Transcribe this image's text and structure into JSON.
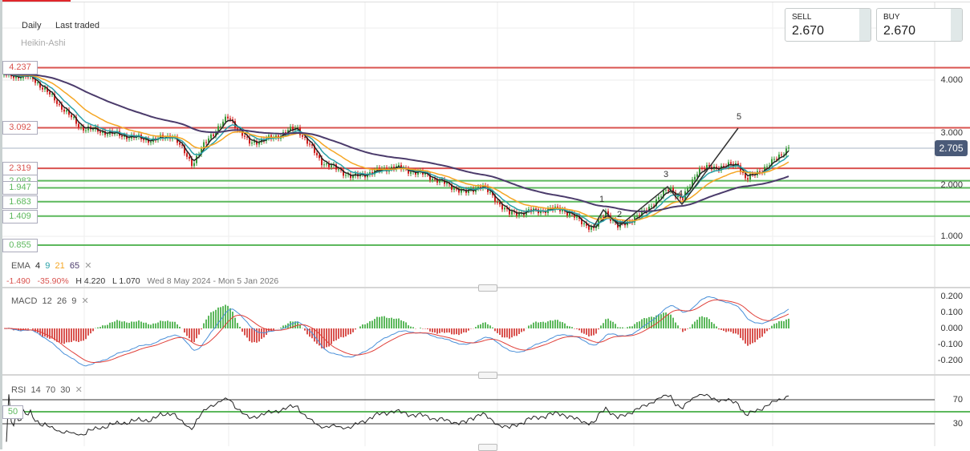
{
  "header": {
    "interval": "Daily",
    "price_type": "Last traded",
    "chart_type": "Heikin-Ashi"
  },
  "quote": {
    "sell_label": "SELL",
    "sell_value": "2.670",
    "buy_label": "BUY",
    "buy_value": "2.670",
    "current_price": "2.705"
  },
  "levels": [
    {
      "label": "4.237",
      "value": 4.237,
      "color": "#d9534f"
    },
    {
      "label": "3.092",
      "value": 3.092,
      "color": "#d9534f"
    },
    {
      "label": "2.319",
      "value": 2.319,
      "color": "#d9534f"
    },
    {
      "label": "2.083",
      "value": 2.083,
      "color": "#5cb85c"
    },
    {
      "label": "1.947",
      "value": 1.947,
      "color": "#5cb85c"
    },
    {
      "label": "1.683",
      "value": 1.683,
      "color": "#5cb85c"
    },
    {
      "label": "1.409",
      "value": 1.409,
      "color": "#5cb85c"
    },
    {
      "label": "0.855",
      "value": 0.855,
      "color": "#5cb85c"
    }
  ],
  "price_axis": [
    "4.000",
    "3.000",
    "2.000",
    "1.000"
  ],
  "ema": {
    "label": "EMA",
    "periods": [
      "4",
      "9",
      "21",
      "65"
    ],
    "colors": [
      "#222222",
      "#2aa1a8",
      "#f5a623",
      "#4b3b6b"
    ]
  },
  "stats": {
    "change": "-1.490",
    "change_pct": "-35.90%",
    "high": "H 4.220",
    "low": "L 1.070",
    "range": "Wed 8 May 2024 - Mon 5 Jan 2026"
  },
  "macd": {
    "label": "MACD",
    "params": [
      "12",
      "26",
      "9"
    ],
    "axis": [
      "0.200",
      "0.100",
      "0.000",
      "-0.100",
      "-0.200"
    ]
  },
  "rsi": {
    "label": "RSI",
    "params": [
      "14",
      "70",
      "30"
    ],
    "axis": [
      "70",
      "30"
    ],
    "mid_label": "50"
  },
  "waves": [
    "1",
    "2",
    "3",
    "4",
    "5"
  ],
  "chart_data": {
    "type": "candlestick",
    "ylim": [
      0.7,
      4.5
    ],
    "close_path": [
      4.1,
      4.05,
      3.6,
      3.1,
      2.95,
      2.85,
      2.95,
      2.4,
      2.9,
      3.3,
      2.8,
      2.9,
      3.1,
      2.45,
      2.15,
      2.35,
      2.2,
      1.85,
      2.0,
      1.45,
      1.5,
      1.55,
      1.15,
      1.5,
      1.2,
      1.45,
      1.95,
      1.7,
      2.3,
      2.35,
      2.4,
      2.1,
      2.4,
      2.75
    ]
  }
}
